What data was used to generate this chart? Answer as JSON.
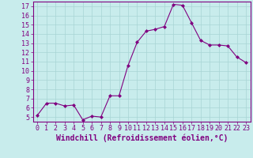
{
  "x": [
    0,
    1,
    2,
    3,
    4,
    5,
    6,
    7,
    8,
    9,
    10,
    11,
    12,
    13,
    14,
    15,
    16,
    17,
    18,
    19,
    20,
    21,
    22,
    23
  ],
  "y": [
    5.2,
    6.5,
    6.5,
    6.2,
    6.3,
    4.7,
    5.1,
    5.0,
    7.3,
    7.3,
    10.6,
    13.1,
    14.3,
    14.5,
    14.8,
    17.2,
    17.1,
    15.2,
    13.3,
    12.8,
    12.8,
    12.7,
    11.5,
    10.9
  ],
  "line_color": "#800080",
  "marker": "D",
  "marker_size": 2,
  "bg_color": "#c8ecec",
  "grid_color": "#a8d4d4",
  "xlabel": "Windchill (Refroidissement éolien,°C)",
  "ylim": [
    4.5,
    17.5
  ],
  "xlim": [
    -0.5,
    23.5
  ],
  "yticks": [
    5,
    6,
    7,
    8,
    9,
    10,
    11,
    12,
    13,
    14,
    15,
    16,
    17
  ],
  "xticks": [
    0,
    1,
    2,
    3,
    4,
    5,
    6,
    7,
    8,
    9,
    10,
    11,
    12,
    13,
    14,
    15,
    16,
    17,
    18,
    19,
    20,
    21,
    22,
    23
  ],
  "tick_color": "#800080",
  "label_color": "#800080",
  "axis_color": "#800080",
  "xlabel_fontsize": 7,
  "tick_fontsize": 6
}
